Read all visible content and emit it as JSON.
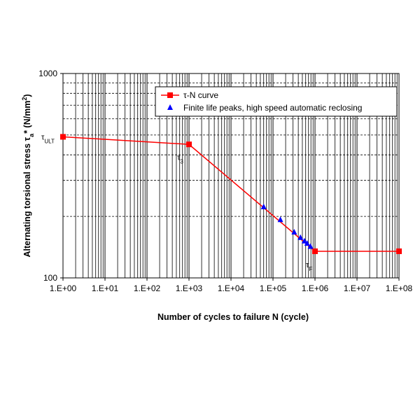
{
  "chart_data": {
    "type": "line",
    "title": "",
    "xlabel": "Number of cycles to failure N (cycle)",
    "ylabel_parts": [
      "Alternating torsional stress τ",
      "a",
      "* (N/mm",
      "2",
      ")"
    ],
    "x_scale": "log",
    "y_scale": "log",
    "xlim": [
      1,
      100000000
    ],
    "ylim": [
      100,
      1000
    ],
    "grid": true,
    "x_tick_labels": [
      "1.E+00",
      "1.E+01",
      "1.E+02",
      "1.E+03",
      "1.E+04",
      "1.E+05",
      "1.E+06",
      "1.E+07",
      "1.E+08"
    ],
    "y_tick_labels": [
      "100",
      "1000"
    ],
    "legend_position": "top-right",
    "series": [
      {
        "name": "τ-N curve",
        "color": "#ff0000",
        "marker": "square",
        "x": [
          1,
          1000,
          1000000,
          100000000
        ],
        "y": [
          490,
          450,
          135,
          135
        ]
      },
      {
        "name": "Finite life peaks, high speed automatic reclosing",
        "color": "#0000ff",
        "marker": "triangle",
        "x": [
          60000,
          150000,
          320000,
          450000,
          560000,
          650000,
          780000
        ],
        "y": [
          222,
          192,
          167,
          157,
          151,
          147,
          142
        ]
      }
    ],
    "annotations": [
      {
        "main": "τ",
        "sub": "ULT",
        "x": 1,
        "y": 490
      },
      {
        "main": "τ",
        "sub": "3",
        "x": 1000,
        "y": 450
      },
      {
        "main": "τ",
        "sub": "F",
        "x": 1000000,
        "y": 135
      }
    ]
  }
}
